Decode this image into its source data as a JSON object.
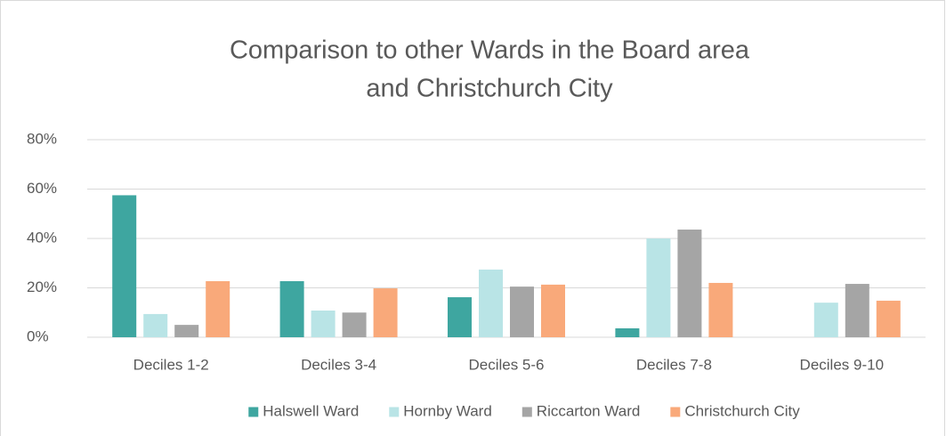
{
  "chart_data": {
    "type": "bar",
    "title": [
      "Comparison to other Wards in the Board area",
      "and Christchurch City"
    ],
    "categories": [
      "Deciles 1-2",
      "Deciles 3-4",
      "Deciles 5-6",
      "Deciles 7-8",
      "Deciles 9-10"
    ],
    "series": [
      {
        "name": "Halswell Ward",
        "color": "#3ea6a0",
        "values": [
          57.5,
          22.7,
          16.2,
          3.6,
          0
        ]
      },
      {
        "name": "Hornby Ward",
        "color": "#b9e4e6",
        "values": [
          9.4,
          10.8,
          27.4,
          40,
          14
        ]
      },
      {
        "name": "Riccarton Ward",
        "color": "#a5a5a5",
        "values": [
          5,
          10,
          20.5,
          43.6,
          21.6
        ]
      },
      {
        "name": "Christchurch City",
        "color": "#f9a97a",
        "values": [
          22.7,
          19.8,
          21.3,
          22,
          14.8
        ]
      }
    ],
    "ylim": [
      0,
      80
    ],
    "yticks": [
      {
        "value": 0,
        "label": "0%"
      },
      {
        "value": 20,
        "label": "20%"
      },
      {
        "value": 40,
        "label": "40%"
      },
      {
        "value": 60,
        "label": "60%"
      },
      {
        "value": 80,
        "label": "80%"
      }
    ],
    "grid": true,
    "legend": "bottom"
  }
}
